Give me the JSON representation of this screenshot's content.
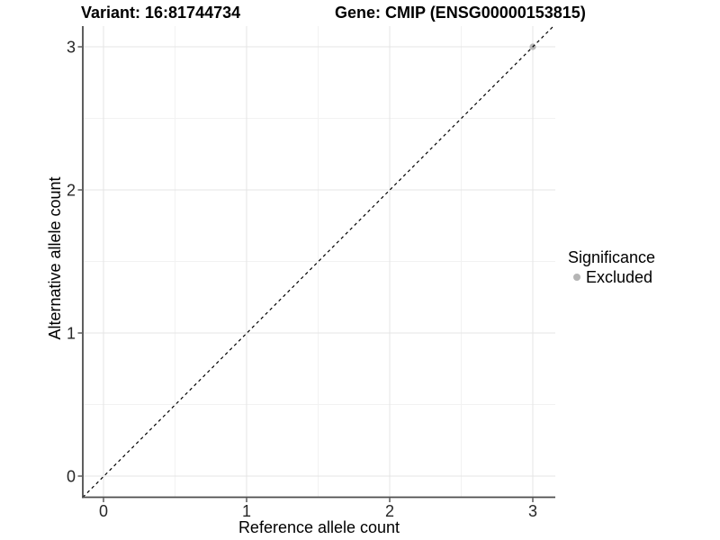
{
  "chart_data": {
    "type": "scatter",
    "title_left": "Variant: 16:81744734",
    "title_right": "Gene: CMIP (ENSG00000153815)",
    "xlabel": "Reference allele count",
    "ylabel": "Alternative allele count",
    "xlim": [
      -0.15,
      3.15
    ],
    "ylim": [
      -0.15,
      3.15
    ],
    "x_ticks": [
      0,
      1,
      2,
      3
    ],
    "y_ticks": [
      0,
      1,
      2,
      3
    ],
    "x_minor_ticks": [
      0.5,
      1.5,
      2.5
    ],
    "y_minor_ticks": [
      0.5,
      1.5,
      2.5
    ],
    "grid": true,
    "legend_position": "right",
    "reference_line": {
      "type": "identity",
      "slope": 1,
      "intercept": 0,
      "style": "dashed",
      "color": "#000000"
    },
    "series": [
      {
        "name": "Excluded",
        "color": "#b5b5b5",
        "points": [
          {
            "x": 3,
            "y": 3
          }
        ]
      }
    ],
    "legend": {
      "title": "Significance",
      "entries": [
        {
          "label": "Excluded",
          "color": "#b5b5b5"
        }
      ]
    }
  },
  "style_colors": {
    "major_grid": "#e4e4e4",
    "minor_grid": "#f2f2f2",
    "axis_line": "#4d4d4d",
    "tick_mark": "#333333",
    "tick_label": "#262626",
    "background": "#ffffff"
  }
}
